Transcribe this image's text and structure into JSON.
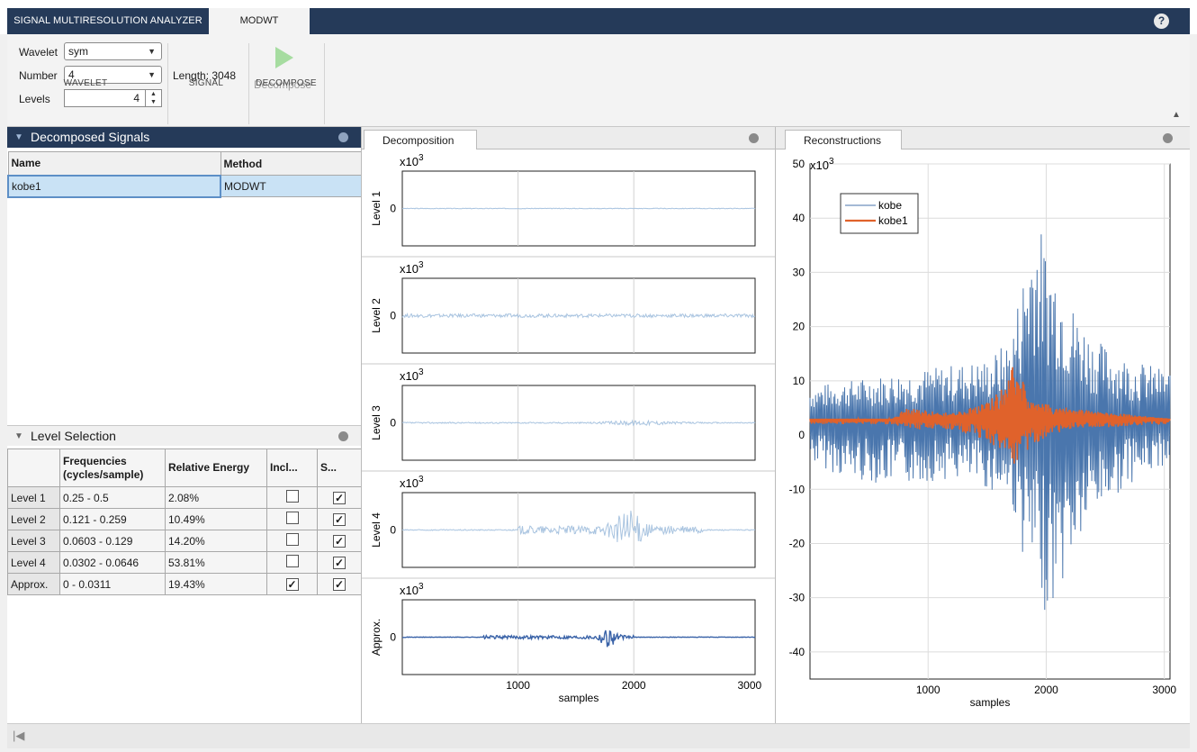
{
  "tabs": {
    "analyzer": "SIGNAL MULTIRESOLUTION ANALYZER",
    "modwt": "MODWT"
  },
  "help_icon": "?",
  "toolstrip": {
    "wavelet_label": "Wavelet",
    "wavelet_value": "sym",
    "number_label": "Number",
    "number_value": "4",
    "levels_label": "Levels",
    "levels_value": "4",
    "length_text": "Length: 3048",
    "decompose_label": "Decompose",
    "sections": {
      "wavelet": "WAVELET",
      "signal": "SIGNAL",
      "decompose": "DECOMPOSE"
    }
  },
  "decomposed_signals": {
    "title": "Decomposed Signals",
    "columns": [
      "Name",
      "Method"
    ],
    "rows": [
      {
        "name": "kobe1",
        "method": "MODWT"
      }
    ]
  },
  "level_selection": {
    "title": "Level Selection",
    "columns": [
      "",
      "Frequencies (cycles/sample)",
      "Relative Energy",
      "Incl...",
      "S..."
    ],
    "rows": [
      {
        "level": "Level 1",
        "freq": "0.25 - 0.5",
        "energy": "2.08%",
        "include": false,
        "show": true
      },
      {
        "level": "Level 2",
        "freq": "0.121 - 0.259",
        "energy": "10.49%",
        "include": false,
        "show": true
      },
      {
        "level": "Level 3",
        "freq": "0.0603 - 0.129",
        "energy": "14.20%",
        "include": false,
        "show": true
      },
      {
        "level": "Level 4",
        "freq": "0.0302 - 0.0646",
        "energy": "53.81%",
        "include": false,
        "show": true
      },
      {
        "level": "Approx.",
        "freq": "0 - 0.0311",
        "energy": "19.43%",
        "include": true,
        "show": true
      }
    ]
  },
  "decomposition": {
    "tab": "Decomposition",
    "panels": [
      {
        "label": "Level 1",
        "multiplier": "x10",
        "exp": "3",
        "ytick": "0"
      },
      {
        "label": "Level 2",
        "multiplier": "x10",
        "exp": "3",
        "ytick": "0"
      },
      {
        "label": "Level 3",
        "multiplier": "x10",
        "exp": "3",
        "ytick": "0"
      },
      {
        "label": "Level 4",
        "multiplier": "x10",
        "exp": "3",
        "ytick": "0"
      },
      {
        "label": "Approx.",
        "multiplier": "x10",
        "exp": "3",
        "ytick": "0"
      }
    ],
    "xticks": [
      "1000",
      "2000",
      "3000"
    ],
    "xlabel": "samples"
  },
  "reconstructions": {
    "tab": "Reconstructions",
    "multiplier": "x10",
    "exp": "3",
    "xlabel": "samples",
    "xticks": [
      "1000",
      "2000",
      "3000"
    ]
  },
  "chart_data": [
    {
      "type": "line",
      "title": "",
      "xlabel": "samples",
      "ylabel": "",
      "xlim": [
        0,
        3048
      ],
      "ylim": [
        -45,
        50
      ],
      "yticks": [
        -40,
        -30,
        -20,
        -10,
        0,
        10,
        20,
        30,
        40,
        50
      ],
      "xticks": [
        1000,
        2000,
        3000
      ],
      "y_multiplier": "x10^3",
      "grid": true,
      "legend": "top-left",
      "series": [
        {
          "name": "kobe",
          "color": "#4a76ad",
          "envelope": [
            [
              0,
              9
            ],
            [
              300,
              10
            ],
            [
              600,
              11
            ],
            [
              900,
              12
            ],
            [
              1200,
              13
            ],
            [
              1500,
              14
            ],
            [
              1700,
              18
            ],
            [
              1800,
              30
            ],
            [
              1900,
              42
            ],
            [
              2000,
              35
            ],
            [
              2100,
              32
            ],
            [
              2200,
              25
            ],
            [
              2400,
              18
            ],
            [
              2700,
              14
            ],
            [
              3048,
              12
            ]
          ],
          "min_envelope": [
            [
              0,
              -5
            ],
            [
              300,
              -8
            ],
            [
              600,
              -9
            ],
            [
              900,
              -9
            ],
            [
              1200,
              -8
            ],
            [
              1500,
              -10
            ],
            [
              1700,
              -12
            ],
            [
              1800,
              -22
            ],
            [
              1900,
              -28
            ],
            [
              2000,
              -33
            ],
            [
              2100,
              -30
            ],
            [
              2200,
              -24
            ],
            [
              2400,
              -15
            ],
            [
              2700,
              -9
            ],
            [
              3048,
              -5
            ]
          ]
        },
        {
          "name": "kobe1",
          "color": "#e0622b",
          "envelope": [
            [
              0,
              3
            ],
            [
              700,
              3
            ],
            [
              800,
              5
            ],
            [
              1200,
              4
            ],
            [
              1500,
              6
            ],
            [
              1650,
              10
            ],
            [
              1750,
              15
            ],
            [
              1800,
              10
            ],
            [
              1950,
              6
            ],
            [
              2200,
              5
            ],
            [
              3048,
              3
            ]
          ],
          "min_envelope": [
            [
              0,
              2
            ],
            [
              700,
              2
            ],
            [
              800,
              1
            ],
            [
              1200,
              1
            ],
            [
              1500,
              -1
            ],
            [
              1650,
              -4
            ],
            [
              1750,
              -6
            ],
            [
              1800,
              -4
            ],
            [
              1950,
              -1
            ],
            [
              2200,
              1
            ],
            [
              3048,
              2
            ]
          ]
        }
      ]
    }
  ]
}
